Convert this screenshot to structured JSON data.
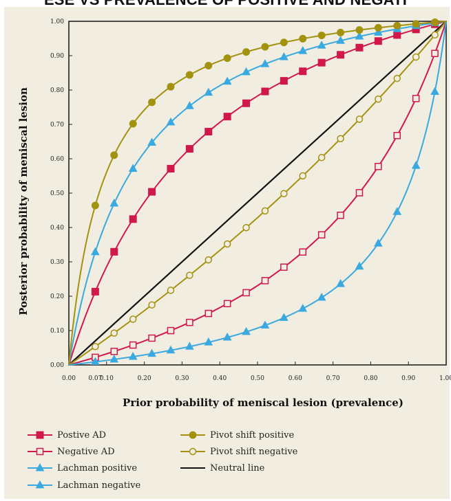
{
  "title": "ESE VS PREVALENCE OF POSITIVE AND NEGATI",
  "chart_data": {
    "type": "line",
    "title": "ESE VS PREVALENCE OF POSITIVE AND NEGATI",
    "xlabel": "Prior probability of meniscal lesion (prevalence)",
    "ylabel": "Posterior probability of meniscal lesion",
    "xlim": [
      0,
      1
    ],
    "ylim": [
      0,
      1
    ],
    "x_ticks": [
      "0.00",
      "0.10",
      "0.20",
      "0.30",
      "0.40",
      "0.50",
      "0.60",
      "0.70",
      "0.80",
      "0.90",
      "1.00"
    ],
    "x_minor_tick_label": "0.07",
    "y_ticks": [
      "0.00",
      "0.10",
      "0.20",
      "0.30",
      "0.40",
      "0.50",
      "0.60",
      "0.70",
      "0.80",
      "0.90",
      "1.00"
    ],
    "grid": false,
    "legend_position": "bottom",
    "colors": {
      "positive_ad": "#d0194a",
      "negative_ad": "#d0194a",
      "lachman_positive": "#3aa9e0",
      "lachman_negative": "#3aa9e0",
      "pivot_positive": "#a3920f",
      "pivot_negative": "#a3920f",
      "neutral": "#111111",
      "panel": "#f1ede0"
    },
    "series": [
      {
        "name": "Postive AD",
        "marker": "square-filled",
        "positive_lr": 3.6
      },
      {
        "name": "Negative AD",
        "marker": "square-open",
        "negative_lr": 0.3
      },
      {
        "name": "Lachman positive",
        "marker": "triangle",
        "positive_lr": 6.5
      },
      {
        "name": "Lachman negative",
        "marker": "triangle",
        "negative_lr": 0.12
      },
      {
        "name": "Pivot shift positive",
        "marker": "circle-filled",
        "positive_lr": 11.5
      },
      {
        "name": "Pivot shift negative",
        "marker": "circle-open",
        "negative_lr": 0.75
      },
      {
        "name": "Neutral line",
        "marker": "none"
      }
    ],
    "x": [
      0,
      0.07,
      0.12,
      0.17,
      0.22,
      0.27,
      0.32,
      0.37,
      0.42,
      0.47,
      0.52,
      0.57,
      0.62,
      0.67,
      0.72,
      0.77,
      0.82,
      0.87,
      0.92,
      0.97,
      1.0
    ]
  }
}
